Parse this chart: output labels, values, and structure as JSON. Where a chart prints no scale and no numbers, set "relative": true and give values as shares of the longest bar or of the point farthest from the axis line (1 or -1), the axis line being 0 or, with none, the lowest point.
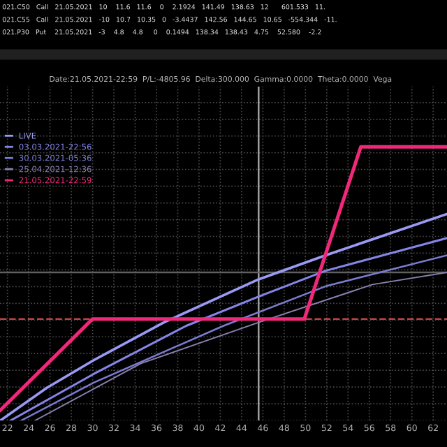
{
  "chart_data": {
    "type": "line",
    "relative": true,
    "title": "Date:21.05.2021-22:59  P/L:-4805.96  Delta:300.000  Gamma:0.0000  Theta:0.0000  Vega",
    "annotations": [
      "021.C50   Call   21.05.2021   10    11.6   11.6    0    2.1924   141.49   138.63   12      601.533   11.",
      "021.C55   Call   21.05.2021   -10   10.7   10.35   0   -3.4437   142.56   144.65   10.65   -554.344   -11.",
      "021.P30   Put    21.05.2021   -3    4.8    4.8     0    0.1494   138.34   138.43   4.75    52.580    -2.2"
    ],
    "xlim": [
      21.3,
      63.3
    ],
    "xticks": [
      22,
      24,
      26,
      28,
      30,
      32,
      34,
      36,
      38,
      40,
      42,
      44,
      46,
      48,
      50,
      52,
      54,
      56,
      58,
      60,
      62
    ],
    "grid": true,
    "legend": "top left",
    "line_style": "solid",
    "marker": "none",
    "ref_lines": [
      {
        "axis": "x",
        "value": 45.6,
        "color": "#a0a0a0",
        "line_style": "solid"
      },
      {
        "axis": "y",
        "value": 0.27,
        "color": "#606060",
        "line_style": "solid"
      },
      {
        "axis": "y",
        "value": 0,
        "color": "#c04040",
        "line_style": "dashed"
      }
    ],
    "series": [
      {
        "name": "LIVE",
        "color": "#9a9af5",
        "x": [
          21.34,
          25.7,
          30.1,
          36.7,
          45.6,
          51.9,
          63.3
        ],
        "values": [
          -0.59,
          -0.4,
          -0.24,
          -0.02,
          0.23,
          0.37,
          0.61
        ]
      },
      {
        "name": "03.03.2021-22:56",
        "color": "#8585e8",
        "x": [
          22.3,
          30.1,
          38.8,
          45.6,
          51.9,
          63.3
        ],
        "values": [
          -0.59,
          -0.32,
          -0.04,
          0.13,
          0.28,
          0.47
        ]
      },
      {
        "name": "30.03.2021-05:36",
        "color": "#7b7bd0",
        "x": [
          23.3,
          30.1,
          42.3,
          51.9,
          63.3
        ],
        "values": [
          -0.59,
          -0.37,
          -0.04,
          0.19,
          0.37
        ]
      },
      {
        "name": "25.04.2021-12:36",
        "color": "#8a80b0",
        "x": [
          24.6,
          34.5,
          45.6,
          56.3,
          63.3
        ],
        "values": [
          -0.59,
          -0.26,
          -0.02,
          0.2,
          0.27
        ]
      },
      {
        "name": "21.05.2021-22:59",
        "color": "#f0287a",
        "x": [
          21.34,
          30.0,
          49.9,
          55.2,
          63.3
        ],
        "values": [
          -0.53,
          0,
          0,
          1,
          1
        ]
      }
    ]
  }
}
